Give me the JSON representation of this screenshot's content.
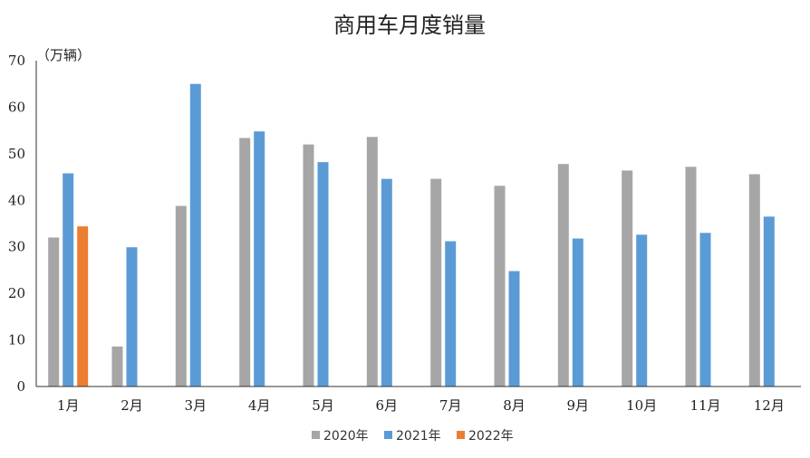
{
  "chart_data": {
    "type": "bar",
    "title": "商用车月度销量",
    "ylabel": "（万辆）",
    "xlabel": "",
    "ylim": [
      0,
      70
    ],
    "yticks": [
      "0",
      "10",
      "20",
      "30",
      "40",
      "50",
      "60",
      "70"
    ],
    "grid": false,
    "legend_position": "bottom",
    "categories": [
      "1月",
      "2月",
      "3月",
      "4月",
      "5月",
      "6月",
      "7月",
      "8月",
      "9月",
      "10月",
      "11月",
      "12月"
    ],
    "series": [
      {
        "name": "2020年",
        "color": "#a6a6a6",
        "values": [
          32.0,
          8.6,
          38.8,
          53.4,
          52.0,
          53.6,
          44.6,
          43.1,
          47.8,
          46.4,
          47.2,
          45.6
        ]
      },
      {
        "name": "2021年",
        "color": "#5b9bd5",
        "values": [
          45.8,
          29.9,
          65.0,
          54.8,
          48.2,
          44.6,
          31.2,
          24.8,
          31.8,
          32.6,
          33.0,
          36.5
        ]
      },
      {
        "name": "2022年",
        "color": "#ed7d31",
        "values": [
          34.4,
          null,
          null,
          null,
          null,
          null,
          null,
          null,
          null,
          null,
          null,
          null
        ]
      }
    ]
  }
}
